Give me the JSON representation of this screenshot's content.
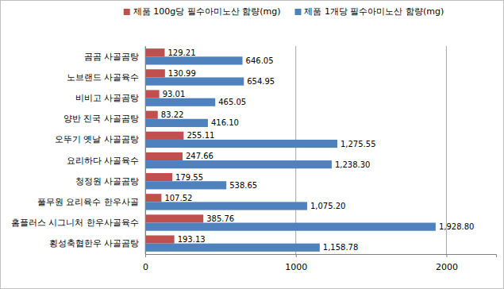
{
  "chart_data": {
    "type": "bar",
    "orientation": "horizontal",
    "categories": [
      "곰곰 사골곰탕",
      "노브랜드 사골육수",
      "비비고 사골곰탕",
      "양반 진국 사골곰탕",
      "오뚜기 옛날 사골곰탕",
      "요리하다 사골육수",
      "청정원 사골곰탕",
      "풀무원 요리육수 한우사골",
      "홈플러스 시그니처 한우사골육수",
      "횡성축협한우 사골곰탕"
    ],
    "series": [
      {
        "name": "제품 100g당 필수아미노산 함량(mg)",
        "color": "#c0504d",
        "values": [
          129.21,
          130.99,
          93.01,
          83.22,
          255.11,
          247.66,
          179.55,
          107.52,
          385.76,
          193.13
        ]
      },
      {
        "name": "제품 1개당 필수아미노산 함량(mg)",
        "color": "#4f81bd",
        "values": [
          646.05,
          654.95,
          465.05,
          416.1,
          1275.55,
          1238.3,
          538.65,
          1075.2,
          1928.8,
          1158.78
        ],
        "value_labels": [
          "646.05",
          "654.95",
          "465.05",
          "416.10",
          "1,275.55",
          "1,238.30",
          "538.65",
          "1,075.20",
          "1,928.80",
          "1,158.78"
        ]
      }
    ],
    "xlim": [
      0,
      2330
    ],
    "xticks": [
      0,
      1000,
      2000
    ],
    "grid": true,
    "legend": "top",
    "data_labels": true
  }
}
